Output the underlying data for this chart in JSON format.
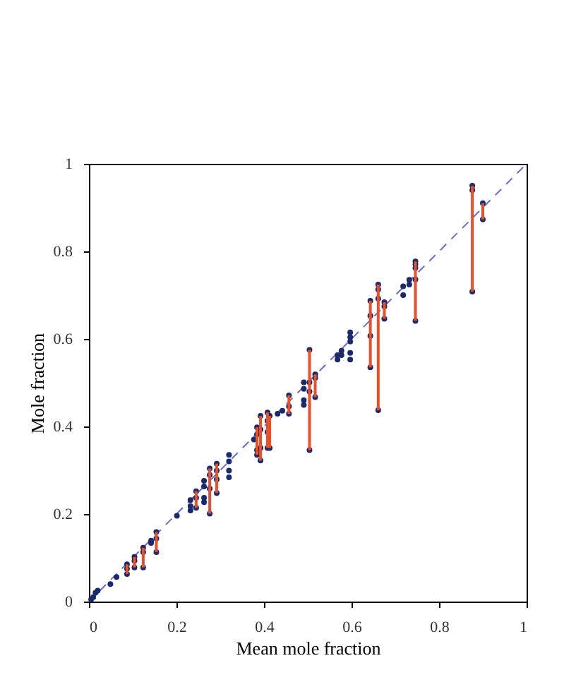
{
  "chart_data": {
    "type": "scatter",
    "xlabel": "Mean mole fraction",
    "ylabel": "Mole fraction",
    "xlim": [
      0,
      1
    ],
    "ylim": [
      0,
      1
    ],
    "xticks": [
      0,
      0.2,
      0.4,
      0.6,
      0.8,
      1
    ],
    "yticks": [
      0,
      0.2,
      0.4,
      0.6,
      0.8,
      1
    ],
    "grid": false,
    "series": [
      {
        "type": "line",
        "color": "#6b6bd6",
        "line_style": "dashed",
        "marker": "none",
        "x": [
          0,
          1
        ],
        "values": [
          0,
          1
        ]
      },
      {
        "type": "bar",
        "color": "#e8502a",
        "x": [
          0.087,
          0.104,
          0.124,
          0.154,
          0.245,
          0.276,
          0.292,
          0.384,
          0.392,
          0.408,
          0.413,
          0.457,
          0.504,
          0.517,
          0.643,
          0.661,
          0.675,
          0.746,
          0.876,
          0.9
        ],
        "base": [
          0.063,
          0.078,
          0.078,
          0.113,
          0.214,
          0.201,
          0.248,
          0.335,
          0.322,
          0.351,
          0.351,
          0.429,
          0.346,
          0.467,
          0.535,
          0.437,
          0.646,
          0.641,
          0.708,
          0.873
        ],
        "values": [
          0.022,
          0.024,
          0.045,
          0.046,
          0.038,
          0.103,
          0.067,
          0.063,
          0.102,
          0.081,
          0.073,
          0.042,
          0.229,
          0.052,
          0.152,
          0.287,
          0.038,
          0.136,
          0.242,
          0.037
        ]
      },
      {
        "marker": "circle",
        "color": "#1a2a6c",
        "x": [
          0.005,
          0.01,
          0.015,
          0.02,
          0.049,
          0.063,
          0.087,
          0.087,
          0.087,
          0.104,
          0.104,
          0.104,
          0.124,
          0.124,
          0.124,
          0.142,
          0.142,
          0.154,
          0.154,
          0.154,
          0.201,
          0.232,
          0.232,
          0.232,
          0.245,
          0.245,
          0.245,
          0.263,
          0.263,
          0.263,
          0.263,
          0.276,
          0.276,
          0.276,
          0.276,
          0.292,
          0.292,
          0.292,
          0.292,
          0.32,
          0.32,
          0.32,
          0.32,
          0.377,
          0.384,
          0.384,
          0.384,
          0.384,
          0.392,
          0.392,
          0.392,
          0.392,
          0.408,
          0.408,
          0.408,
          0.408,
          0.413,
          0.413,
          0.431,
          0.442,
          0.457,
          0.457,
          0.457,
          0.491,
          0.491,
          0.491,
          0.491,
          0.504,
          0.504,
          0.504,
          0.504,
          0.517,
          0.517,
          0.517,
          0.568,
          0.568,
          0.577,
          0.577,
          0.597,
          0.597,
          0.597,
          0.597,
          0.597,
          0.643,
          0.643,
          0.643,
          0.643,
          0.661,
          0.661,
          0.661,
          0.661,
          0.675,
          0.675,
          0.675,
          0.718,
          0.718,
          0.732,
          0.732,
          0.746,
          0.746,
          0.746,
          0.746,
          0.746,
          0.876,
          0.876,
          0.876,
          0.9,
          0.9
        ],
        "values": [
          0.005,
          0.01,
          0.02,
          0.025,
          0.04,
          0.056,
          0.085,
          0.075,
          0.063,
          0.102,
          0.093,
          0.078,
          0.123,
          0.113,
          0.078,
          0.139,
          0.134,
          0.159,
          0.144,
          0.113,
          0.196,
          0.232,
          0.218,
          0.208,
          0.252,
          0.237,
          0.214,
          0.276,
          0.263,
          0.237,
          0.227,
          0.304,
          0.289,
          0.258,
          0.201,
          0.315,
          0.299,
          0.279,
          0.248,
          0.335,
          0.32,
          0.299,
          0.284,
          0.37,
          0.398,
          0.382,
          0.346,
          0.335,
          0.424,
          0.393,
          0.351,
          0.322,
          0.432,
          0.413,
          0.387,
          0.351,
          0.424,
          0.351,
          0.429,
          0.436,
          0.471,
          0.446,
          0.429,
          0.501,
          0.486,
          0.46,
          0.449,
          0.575,
          0.501,
          0.48,
          0.346,
          0.519,
          0.511,
          0.467,
          0.563,
          0.553,
          0.573,
          0.563,
          0.615,
          0.604,
          0.594,
          0.568,
          0.553,
          0.687,
          0.653,
          0.607,
          0.535,
          0.724,
          0.713,
          0.692,
          0.437,
          0.684,
          0.674,
          0.646,
          0.72,
          0.7,
          0.735,
          0.724,
          0.777,
          0.77,
          0.762,
          0.736,
          0.641,
          0.95,
          0.94,
          0.708,
          0.91,
          0.873
        ]
      }
    ]
  }
}
